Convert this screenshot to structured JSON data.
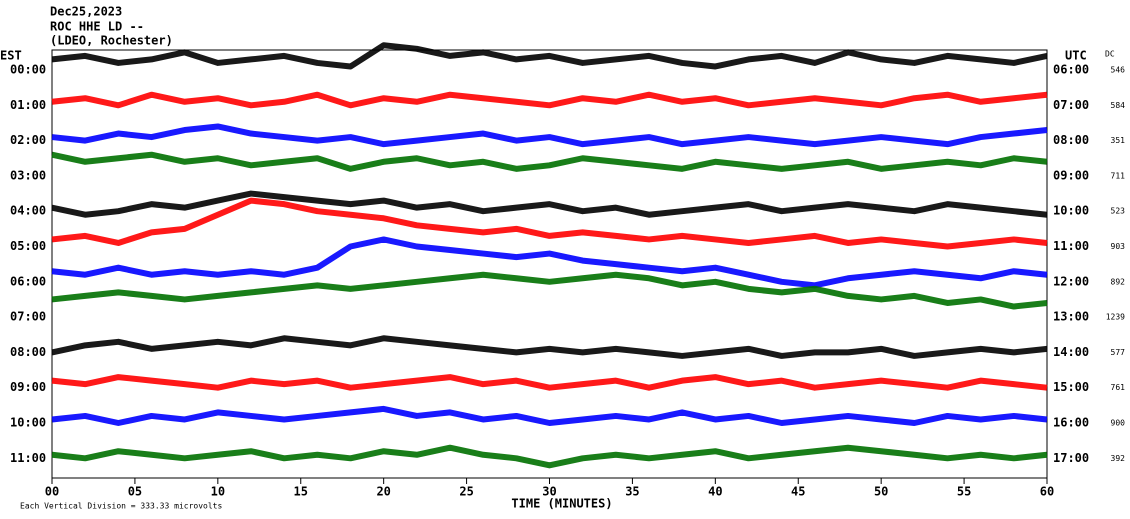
{
  "chart_data": {
    "type": "helicorder",
    "title_lines": [
      "Dec25,2023",
      "ROC HHE LD --",
      "(LDEO, Rochester)"
    ],
    "left_header": "EST",
    "right_header": "UTC",
    "dc_header": "DC",
    "x_label": "TIME (MINUTES)",
    "footnote": "Each Vertical Division =  333.33 microvolts",
    "xlim": [
      0,
      60
    ],
    "xticks": [
      {
        "value": 0,
        "label": "00"
      },
      {
        "value": 5,
        "label": "05"
      },
      10,
      15,
      20,
      25,
      30,
      35,
      40,
      45,
      50,
      55,
      60
    ],
    "x": [
      0,
      2,
      4,
      6,
      8,
      10,
      12,
      14,
      16,
      18,
      20,
      22,
      24,
      26,
      28,
      30,
      32,
      34,
      36,
      38,
      40,
      42,
      44,
      46,
      48,
      50,
      52,
      54,
      56,
      58,
      60
    ],
    "rows": [
      {
        "est": "00:00",
        "utc": "06:00",
        "dc": 546,
        "color": "#000000",
        "values": [
          0.3,
          0.4,
          0.2,
          0.3,
          0.5,
          0.2,
          0.3,
          0.4,
          0.2,
          0.1,
          0.7,
          0.6,
          0.4,
          0.5,
          0.3,
          0.4,
          0.2,
          0.3,
          0.4,
          0.2,
          0.1,
          0.3,
          0.4,
          0.2,
          0.5,
          0.3,
          0.2,
          0.4,
          0.3,
          0.2,
          0.4
        ]
      },
      {
        "est": "01:00",
        "utc": "07:00",
        "dc": 584,
        "color": "#ff0000",
        "values": [
          0.1,
          0.2,
          0.0,
          0.3,
          0.1,
          0.2,
          0.0,
          0.1,
          0.3,
          0.0,
          0.2,
          0.1,
          0.3,
          0.2,
          0.1,
          0.0,
          0.2,
          0.1,
          0.3,
          0.1,
          0.2,
          0.0,
          0.1,
          0.2,
          0.1,
          0.0,
          0.2,
          0.3,
          0.1,
          0.2,
          0.3
        ]
      },
      {
        "est": "02:00",
        "utc": "08:00",
        "dc": 351,
        "color": "#0000ff",
        "values": [
          0.1,
          0.0,
          0.2,
          0.1,
          0.3,
          0.4,
          0.2,
          0.1,
          0.0,
          0.1,
          -0.1,
          0.0,
          0.1,
          0.2,
          0.0,
          0.1,
          -0.1,
          0.0,
          0.1,
          -0.1,
          0.0,
          0.1,
          0.0,
          -0.1,
          0.0,
          0.1,
          0.0,
          -0.1,
          0.1,
          0.2,
          0.3
        ]
      },
      {
        "est": "03:00",
        "utc": "09:00",
        "dc": 711,
        "color": "#007000",
        "values": [
          0.6,
          0.4,
          0.5,
          0.6,
          0.4,
          0.5,
          0.3,
          0.4,
          0.5,
          0.2,
          0.4,
          0.5,
          0.3,
          0.4,
          0.2,
          0.3,
          0.5,
          0.4,
          0.3,
          0.2,
          0.4,
          0.3,
          0.2,
          0.3,
          0.4,
          0.2,
          0.3,
          0.4,
          0.3,
          0.5,
          0.4
        ]
      },
      {
        "est": "04:00",
        "utc": "10:00",
        "dc": 523,
        "color": "#000000",
        "values": [
          0.1,
          -0.1,
          0.0,
          0.2,
          0.1,
          0.3,
          0.5,
          0.4,
          0.3,
          0.2,
          0.3,
          0.1,
          0.2,
          0.0,
          0.1,
          0.2,
          0.0,
          0.1,
          -0.1,
          0.0,
          0.1,
          0.2,
          0.0,
          0.1,
          0.2,
          0.1,
          0.0,
          0.2,
          0.1,
          0.0,
          -0.1
        ]
      },
      {
        "est": "05:00",
        "utc": "11:00",
        "dc": 903,
        "color": "#ff0000",
        "values": [
          0.2,
          0.3,
          0.1,
          0.4,
          0.5,
          0.9,
          1.3,
          1.2,
          1.0,
          0.9,
          0.8,
          0.6,
          0.5,
          0.4,
          0.5,
          0.3,
          0.4,
          0.3,
          0.2,
          0.3,
          0.2,
          0.1,
          0.2,
          0.3,
          0.1,
          0.2,
          0.1,
          0.0,
          0.1,
          0.2,
          0.1
        ]
      },
      {
        "est": "06:00",
        "utc": "12:00",
        "dc": 892,
        "color": "#0000ff",
        "values": [
          0.3,
          0.2,
          0.4,
          0.2,
          0.3,
          0.2,
          0.3,
          0.2,
          0.4,
          1.0,
          1.2,
          1.0,
          0.9,
          0.8,
          0.7,
          0.8,
          0.6,
          0.5,
          0.4,
          0.3,
          0.4,
          0.2,
          0.0,
          -0.1,
          0.1,
          0.2,
          0.3,
          0.2,
          0.1,
          0.3,
          0.2
        ]
      },
      {
        "est": "07:00",
        "utc": "13:00",
        "dc": 1239,
        "color": "#007000",
        "values": [
          0.5,
          0.6,
          0.7,
          0.6,
          0.5,
          0.6,
          0.7,
          0.8,
          0.9,
          0.8,
          0.9,
          1.0,
          1.1,
          1.2,
          1.1,
          1.0,
          1.1,
          1.2,
          1.1,
          0.9,
          1.0,
          0.8,
          0.7,
          0.8,
          0.6,
          0.5,
          0.6,
          0.4,
          0.5,
          0.3,
          0.4
        ]
      },
      {
        "est": "08:00",
        "utc": "14:00",
        "dc": 577,
        "color": "#000000",
        "values": [
          0.0,
          0.2,
          0.3,
          0.1,
          0.2,
          0.3,
          0.2,
          0.4,
          0.3,
          0.2,
          0.4,
          0.3,
          0.2,
          0.1,
          0.0,
          0.1,
          0.0,
          0.1,
          0.0,
          -0.1,
          0.0,
          0.1,
          -0.1,
          0.0,
          0.0,
          0.1,
          -0.1,
          0.0,
          0.1,
          0.0,
          0.1
        ]
      },
      {
        "est": "09:00",
        "utc": "15:00",
        "dc": 761,
        "color": "#ff0000",
        "values": [
          0.2,
          0.1,
          0.3,
          0.2,
          0.1,
          0.0,
          0.2,
          0.1,
          0.2,
          0.0,
          0.1,
          0.2,
          0.3,
          0.1,
          0.2,
          0.0,
          0.1,
          0.2,
          0.0,
          0.2,
          0.3,
          0.1,
          0.2,
          0.0,
          0.1,
          0.2,
          0.1,
          0.0,
          0.2,
          0.1,
          0.0
        ]
      },
      {
        "est": "10:00",
        "utc": "16:00",
        "dc": 900,
        "color": "#0000ff",
        "values": [
          0.1,
          0.2,
          0.0,
          0.2,
          0.1,
          0.3,
          0.2,
          0.1,
          0.2,
          0.3,
          0.4,
          0.2,
          0.3,
          0.1,
          0.2,
          0.0,
          0.1,
          0.2,
          0.1,
          0.3,
          0.1,
          0.2,
          0.0,
          0.1,
          0.2,
          0.1,
          0.0,
          0.2,
          0.1,
          0.2,
          0.1
        ]
      },
      {
        "est": "11:00",
        "utc": "17:00",
        "dc": 392,
        "color": "#007000",
        "values": [
          0.1,
          0.0,
          0.2,
          0.1,
          0.0,
          0.1,
          0.2,
          0.0,
          0.1,
          0.0,
          0.2,
          0.1,
          0.3,
          0.1,
          0.0,
          -0.2,
          0.0,
          0.1,
          0.0,
          0.1,
          0.2,
          0.0,
          0.1,
          0.2,
          0.3,
          0.2,
          0.1,
          0.0,
          0.1,
          0.0,
          0.1
        ]
      }
    ]
  }
}
